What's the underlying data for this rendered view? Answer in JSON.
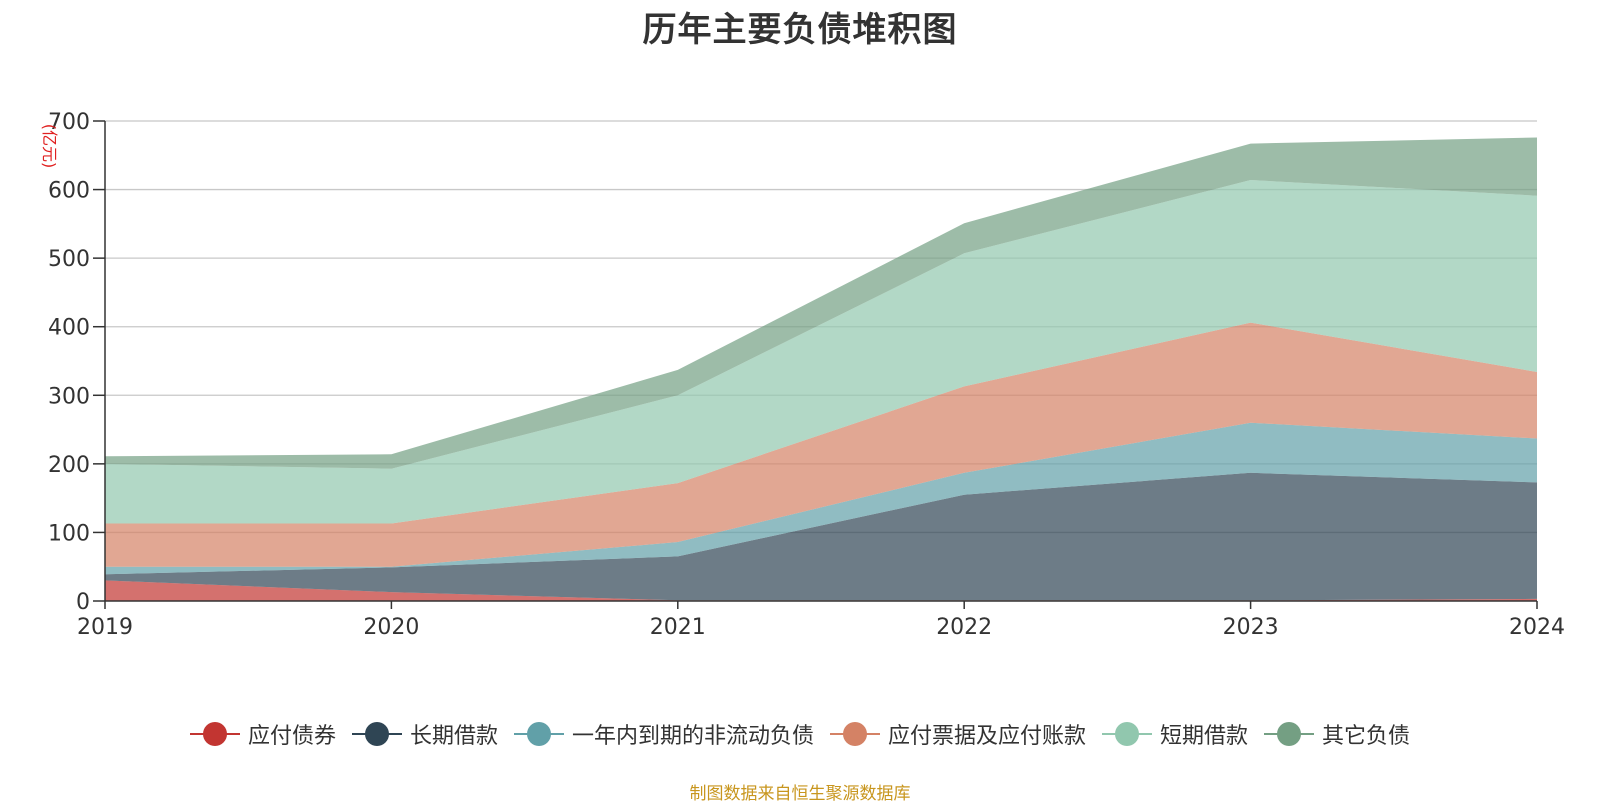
{
  "chart_data": {
    "type": "area",
    "stacked": true,
    "title": "历年主要负债堆积图",
    "unit_label": "(亿元)",
    "x": [
      "2019",
      "2020",
      "2021",
      "2022",
      "2023",
      "2024"
    ],
    "ylim": [
      0,
      700
    ],
    "yticks": [
      0,
      100,
      200,
      300,
      400,
      500,
      600,
      700
    ],
    "grid": true,
    "legend_position": "bottom",
    "series": [
      {
        "name": "应付债券",
        "color": "#c23531",
        "values": [
          30,
          13,
          1,
          1,
          1,
          3
        ]
      },
      {
        "name": "长期借款",
        "color": "#2f4554",
        "values": [
          9,
          36,
          64,
          154,
          186,
          170
        ]
      },
      {
        "name": "一年内到期的非流动负债",
        "color": "#61a0a8",
        "values": [
          11,
          1,
          21,
          32,
          73,
          64
        ]
      },
      {
        "name": "应付票据及应付账款",
        "color": "#d48265",
        "values": [
          63,
          63,
          86,
          126,
          146,
          97
        ]
      },
      {
        "name": "短期借款",
        "color": "#91c7ae",
        "values": [
          87,
          80,
          128,
          194,
          208,
          257
        ]
      },
      {
        "name": "其它负债",
        "color": "#749f83",
        "values": [
          11,
          21,
          37,
          44,
          53,
          85
        ]
      }
    ],
    "source_note": "制图数据来自恒生聚源数据库"
  }
}
